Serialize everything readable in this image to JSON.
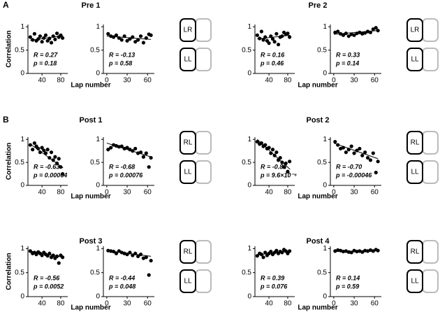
{
  "panel_labels": [
    "A",
    "B"
  ],
  "groups": [
    {
      "title": "Pre 1",
      "xlabel": "Lap number",
      "icons": [
        "LR",
        "LL"
      ]
    },
    {
      "title": "Pre 2",
      "xlabel": "Lap number",
      "icons": [
        "LR",
        "LL"
      ]
    },
    {
      "title": "Post 1",
      "xlabel": "Lap number",
      "icons": [
        "RL",
        "LL"
      ]
    },
    {
      "title": "Post 2",
      "xlabel": "Lap number",
      "icons": [
        "RL",
        "LL"
      ]
    },
    {
      "title": "Post 3",
      "xlabel": "Lap number",
      "icons": [
        "RL",
        "LL"
      ]
    },
    {
      "title": "Post 4",
      "xlabel": "Lap number",
      "icons": [
        "RL",
        "LL"
      ]
    }
  ],
  "chart_data": [
    {
      "type": "scatter",
      "ylabel": "Correlation",
      "r_label": "R = 0.27",
      "p_label": "p = 0.18",
      "xlim": [
        10,
        95
      ],
      "xticks": [
        40,
        80
      ],
      "ylim": [
        0,
        1.05
      ],
      "yticks": [
        0,
        0.5,
        1
      ],
      "x": [
        15,
        20,
        24,
        28,
        32,
        36,
        40,
        44,
        48,
        52,
        56,
        60,
        64,
        68,
        72,
        76,
        80,
        84
      ],
      "y": [
        0.78,
        0.72,
        0.85,
        0.7,
        0.74,
        0.8,
        0.68,
        0.76,
        0.82,
        0.7,
        0.75,
        0.66,
        0.8,
        0.73,
        0.86,
        0.78,
        0.82,
        0.76
      ],
      "fit": {
        "x": [
          15,
          85
        ],
        "y": [
          0.71,
          0.81
        ]
      }
    },
    {
      "type": "scatter",
      "r_label": "R = -0.13",
      "p_label": "p = 0.58",
      "xlim": [
        -5,
        70
      ],
      "xticks": [
        0,
        30,
        60
      ],
      "ylim": [
        0,
        1.05
      ],
      "yticks": [
        0,
        0.5,
        1
      ],
      "x": [
        2,
        6,
        10,
        14,
        18,
        22,
        26,
        30,
        34,
        38,
        42,
        46,
        50,
        54,
        58,
        62,
        65
      ],
      "y": [
        0.85,
        0.8,
        0.78,
        0.82,
        0.76,
        0.72,
        0.8,
        0.7,
        0.74,
        0.78,
        0.68,
        0.72,
        0.8,
        0.66,
        0.76,
        0.84,
        0.82
      ],
      "fit": {
        "x": [
          0,
          65
        ],
        "y": [
          0.8,
          0.73
        ]
      }
    },
    {
      "type": "scatter",
      "r_label": "R = 0.16",
      "p_label": "p = 0.46",
      "xlim": [
        10,
        95
      ],
      "xticks": [
        40,
        80
      ],
      "ylim": [
        0,
        1.05
      ],
      "yticks": [
        0,
        0.5,
        1
      ],
      "x": [
        15,
        20,
        24,
        28,
        32,
        36,
        40,
        44,
        48,
        52,
        56,
        60,
        64,
        68,
        72,
        76,
        80,
        84
      ],
      "y": [
        0.82,
        0.75,
        0.9,
        0.72,
        0.78,
        0.7,
        0.65,
        0.8,
        0.74,
        0.68,
        0.85,
        0.62,
        0.78,
        0.8,
        0.88,
        0.84,
        0.86,
        0.78
      ],
      "fit": {
        "x": [
          15,
          85
        ],
        "y": [
          0.74,
          0.82
        ]
      }
    },
    {
      "type": "scatter",
      "r_label": "R = 0.33",
      "p_label": "p = 0.14",
      "xlim": [
        -5,
        70
      ],
      "xticks": [
        0,
        30,
        60
      ],
      "ylim": [
        0,
        1.05
      ],
      "yticks": [
        0,
        0.5,
        1
      ],
      "x": [
        2,
        6,
        10,
        14,
        18,
        22,
        26,
        30,
        34,
        38,
        42,
        46,
        50,
        54,
        58,
        62,
        65
      ],
      "y": [
        0.88,
        0.9,
        0.85,
        0.82,
        0.86,
        0.8,
        0.84,
        0.82,
        0.86,
        0.88,
        0.85,
        0.87,
        0.9,
        0.88,
        0.95,
        0.98,
        0.92
      ],
      "fit": {
        "x": [
          0,
          65
        ],
        "y": [
          0.84,
          0.92
        ]
      }
    },
    {
      "type": "scatter",
      "ylabel": "Correlation",
      "r_label": "R = -0.63",
      "p_label": "p = 0.00064",
      "xlim": [
        10,
        95
      ],
      "xticks": [
        40,
        80
      ],
      "ylim": [
        0,
        1.05
      ],
      "yticks": [
        0,
        0.5,
        1
      ],
      "x": [
        15,
        20,
        24,
        28,
        32,
        36,
        40,
        44,
        48,
        52,
        56,
        60,
        64,
        68,
        72,
        76,
        80,
        84
      ],
      "y": [
        0.88,
        0.78,
        0.92,
        0.85,
        0.8,
        0.72,
        0.82,
        0.76,
        0.7,
        0.78,
        0.6,
        0.72,
        0.55,
        0.62,
        0.48,
        0.58,
        0.4,
        0.25
      ],
      "fit": {
        "x": [
          15,
          85
        ],
        "y": [
          0.9,
          0.38
        ]
      }
    },
    {
      "type": "scatter",
      "r_label": "R = -0.68",
      "p_label": "p = 0.00076",
      "xlim": [
        -5,
        70
      ],
      "xticks": [
        0,
        30,
        60
      ],
      "ylim": [
        0,
        1.05
      ],
      "yticks": [
        0,
        0.5,
        1
      ],
      "x": [
        2,
        6,
        10,
        14,
        18,
        22,
        26,
        30,
        34,
        38,
        42,
        46,
        50,
        54,
        58,
        62,
        65
      ],
      "y": [
        0.78,
        0.82,
        0.88,
        0.86,
        0.84,
        0.85,
        0.8,
        0.82,
        0.78,
        0.75,
        0.8,
        0.7,
        0.72,
        0.62,
        0.7,
        0.4,
        0.6
      ],
      "fit": {
        "x": [
          0,
          65
        ],
        "y": [
          0.92,
          0.62
        ]
      }
    },
    {
      "type": "scatter",
      "r_label": "R = -0.83",
      "p_label": "p = 9.6×10⁻⁸",
      "xlim": [
        10,
        95
      ],
      "xticks": [
        40,
        80
      ],
      "ylim": [
        0,
        1.05
      ],
      "yticks": [
        0,
        0.5,
        1
      ],
      "x": [
        15,
        20,
        24,
        28,
        32,
        36,
        40,
        44,
        48,
        52,
        56,
        60,
        64,
        68,
        72,
        76,
        80,
        84
      ],
      "y": [
        0.95,
        0.9,
        0.92,
        0.85,
        0.88,
        0.8,
        0.82,
        0.7,
        0.78,
        0.65,
        0.72,
        0.55,
        0.6,
        0.5,
        0.4,
        0.48,
        0.3,
        0.52
      ],
      "fit": {
        "x": [
          15,
          85
        ],
        "y": [
          1.0,
          0.35
        ]
      }
    },
    {
      "type": "scatter",
      "r_label": "R = -0.70",
      "p_label": "p = -0.00046",
      "xlim": [
        -5,
        70
      ],
      "xticks": [
        0,
        30,
        60
      ],
      "ylim": [
        0,
        1.05
      ],
      "yticks": [
        0,
        0.5,
        1
      ],
      "x": [
        2,
        6,
        10,
        14,
        18,
        22,
        26,
        30,
        34,
        38,
        42,
        46,
        50,
        54,
        58,
        62,
        65
      ],
      "y": [
        0.95,
        0.88,
        0.8,
        0.82,
        0.72,
        0.78,
        0.85,
        0.7,
        0.76,
        0.8,
        0.65,
        0.72,
        0.6,
        0.55,
        0.7,
        0.28,
        0.52
      ],
      "fit": {
        "x": [
          0,
          65
        ],
        "y": [
          0.92,
          0.58
        ]
      }
    },
    {
      "type": "scatter",
      "ylabel": "Correlation",
      "r_label": "R = -0.56",
      "p_label": "p = 0.0052",
      "xlim": [
        10,
        95
      ],
      "xticks": [
        40,
        80
      ],
      "ylim": [
        0,
        1.05
      ],
      "yticks": [
        0,
        0.5,
        1
      ],
      "x": [
        15,
        20,
        24,
        28,
        32,
        36,
        40,
        44,
        48,
        52,
        56,
        60,
        64,
        68,
        72,
        76,
        80,
        84
      ],
      "y": [
        0.95,
        0.9,
        0.92,
        0.88,
        0.93,
        0.9,
        0.86,
        0.92,
        0.88,
        0.85,
        0.9,
        0.82,
        0.86,
        0.8,
        0.84,
        0.7,
        0.86,
        0.82
      ],
      "fit": {
        "x": [
          15,
          85
        ],
        "y": [
          0.95,
          0.82
        ]
      }
    },
    {
      "type": "scatter",
      "r_label": "R = -0.44",
      "p_label": "p = 0.048",
      "xlim": [
        -5,
        70
      ],
      "xticks": [
        0,
        30,
        60
      ],
      "ylim": [
        0,
        1.05
      ],
      "yticks": [
        0,
        0.5,
        1
      ],
      "x": [
        2,
        6,
        10,
        14,
        18,
        22,
        26,
        30,
        34,
        38,
        42,
        46,
        50,
        54,
        58,
        62,
        65
      ],
      "y": [
        0.96,
        0.95,
        0.94,
        0.9,
        0.95,
        0.92,
        0.9,
        0.88,
        0.92,
        0.86,
        0.9,
        0.84,
        0.88,
        0.8,
        0.82,
        0.45,
        0.75
      ],
      "fit": {
        "x": [
          0,
          65
        ],
        "y": [
          0.96,
          0.84
        ]
      }
    },
    {
      "type": "scatter",
      "r_label": "R = 0.39",
      "p_label": "p = 0.076",
      "xlim": [
        10,
        95
      ],
      "xticks": [
        40,
        80
      ],
      "ylim": [
        0,
        1.05
      ],
      "yticks": [
        0,
        0.5,
        1
      ],
      "x": [
        15,
        20,
        24,
        28,
        32,
        36,
        40,
        44,
        48,
        52,
        56,
        60,
        64,
        68,
        72,
        76,
        80,
        84
      ],
      "y": [
        0.85,
        0.9,
        0.88,
        0.82,
        0.92,
        0.86,
        0.9,
        0.94,
        0.88,
        0.92,
        0.96,
        0.9,
        0.94,
        0.92,
        0.98,
        0.95,
        0.9,
        0.95
      ],
      "fit": {
        "x": [
          15,
          85
        ],
        "y": [
          0.87,
          0.95
        ]
      }
    },
    {
      "type": "scatter",
      "r_label": "R = 0.14",
      "p_label": "p = 0.59",
      "xlim": [
        -5,
        70
      ],
      "xticks": [
        0,
        30,
        60
      ],
      "ylim": [
        0,
        1.05
      ],
      "yticks": [
        0,
        0.5,
        1
      ],
      "x": [
        2,
        6,
        10,
        14,
        18,
        22,
        26,
        30,
        34,
        38,
        42,
        46,
        50,
        54,
        58,
        62,
        65
      ],
      "y": [
        0.95,
        0.97,
        0.96,
        0.94,
        0.95,
        0.93,
        0.92,
        0.96,
        0.94,
        0.95,
        0.93,
        0.96,
        0.95,
        0.97,
        0.95,
        0.98,
        0.96
      ],
      "fit": {
        "x": [
          0,
          65
        ],
        "y": [
          0.94,
          0.96
        ]
      }
    }
  ]
}
